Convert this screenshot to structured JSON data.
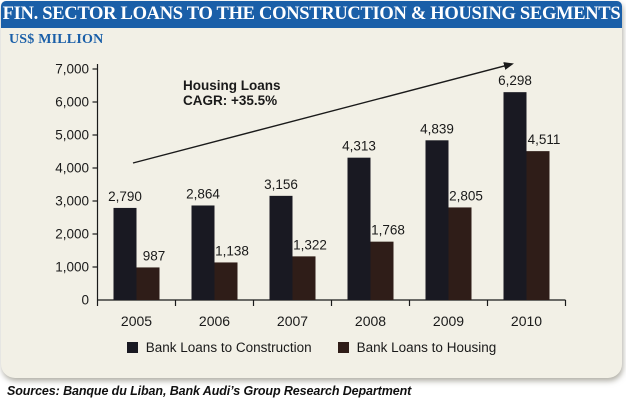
{
  "header": {
    "title": "FIN. SECTOR LOANS TO THE CONSTRUCTION & HOUSING SEGMENTS"
  },
  "subtitle": "US$ MILLION",
  "sources": "Sources: Banque du Liban, Bank Audi’s Group Research Department",
  "colors": {
    "header_bg": "#1a5fa8",
    "panel_bg": "#f2f0e6",
    "construction": "#191922",
    "housing": "#2f1d18",
    "text": "#1a1a1a"
  },
  "chart_data": {
    "type": "bar",
    "title": "FIN. SECTOR LOANS TO THE CONSTRUCTION & HOUSING SEGMENTS",
    "ylabel": "US$ MILLION",
    "xlabel": "",
    "categories": [
      "2005",
      "2006",
      "2007",
      "2008",
      "2009",
      "2010"
    ],
    "series": [
      {
        "name": "Bank Loans to Construction",
        "color_key": "construction",
        "values": [
          2790,
          2864,
          3156,
          4313,
          4839,
          6298
        ],
        "labels": [
          "2,790",
          "2,864",
          "3,156",
          "4,313",
          "4,839",
          "6,298"
        ]
      },
      {
        "name": "Bank Loans to Housing",
        "color_key": "housing",
        "values": [
          987,
          1138,
          1322,
          1768,
          2805,
          4511
        ],
        "labels": [
          "987",
          "1,138",
          "1,322",
          "1,768",
          "2,805",
          "4,511"
        ]
      }
    ],
    "ylim": [
      0,
      7000
    ],
    "ytick_step": 1000,
    "ytick_labels": [
      "0",
      "1,000",
      "2,000",
      "3,000",
      "4,000",
      "5,000",
      "6,000",
      "7,000"
    ],
    "grid": false,
    "legend_position": "bottom",
    "annotation": {
      "line1": "Housing Loans",
      "line2": "CAGR: +35.5%",
      "arrow": true
    }
  }
}
